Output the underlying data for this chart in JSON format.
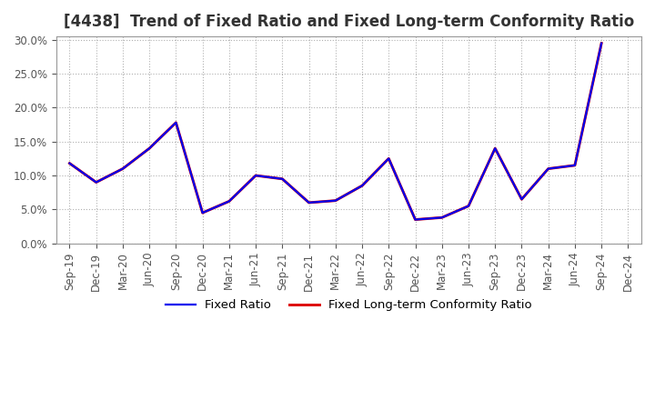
{
  "title": "[4438]  Trend of Fixed Ratio and Fixed Long-term Conformity Ratio",
  "x_labels": [
    "Sep-19",
    "Dec-19",
    "Mar-20",
    "Jun-20",
    "Sep-20",
    "Dec-20",
    "Mar-21",
    "Jun-21",
    "Sep-21",
    "Dec-21",
    "Mar-22",
    "Jun-22",
    "Sep-22",
    "Dec-22",
    "Mar-23",
    "Jun-23",
    "Sep-23",
    "Dec-23",
    "Mar-24",
    "Jun-24",
    "Sep-24",
    "Dec-24"
  ],
  "fixed_ratio_vals": [
    0.118,
    0.09,
    0.11,
    0.14,
    0.178,
    0.045,
    0.062,
    0.1,
    0.095,
    0.06,
    0.063,
    0.085,
    0.125,
    0.035,
    0.038,
    0.055,
    0.14,
    0.065,
    0.11,
    0.115,
    0.295,
    null
  ],
  "fixed_lt_ratio_vals": [
    0.118,
    0.09,
    0.11,
    0.14,
    0.178,
    0.045,
    0.062,
    0.1,
    0.095,
    0.06,
    0.063,
    0.085,
    0.125,
    0.035,
    0.038,
    0.055,
    0.14,
    0.065,
    0.11,
    0.115,
    0.295,
    null
  ],
  "fixed_ratio_color": "#0000ee",
  "fixed_lt_ratio_color": "#dd0000",
  "background_color": "#ffffff",
  "plot_bg_color": "#ffffff",
  "grid_color": "#b0b0b0",
  "ylim": [
    0.0,
    0.305
  ],
  "yticks": [
    0.0,
    0.05,
    0.1,
    0.15,
    0.2,
    0.25,
    0.3
  ],
  "legend_fixed_ratio": "Fixed Ratio",
  "legend_fixed_lt_ratio": "Fixed Long-term Conformity Ratio",
  "title_fontsize": 12,
  "tick_fontsize": 8.5,
  "legend_fontsize": 9.5,
  "line_width": 1.6
}
